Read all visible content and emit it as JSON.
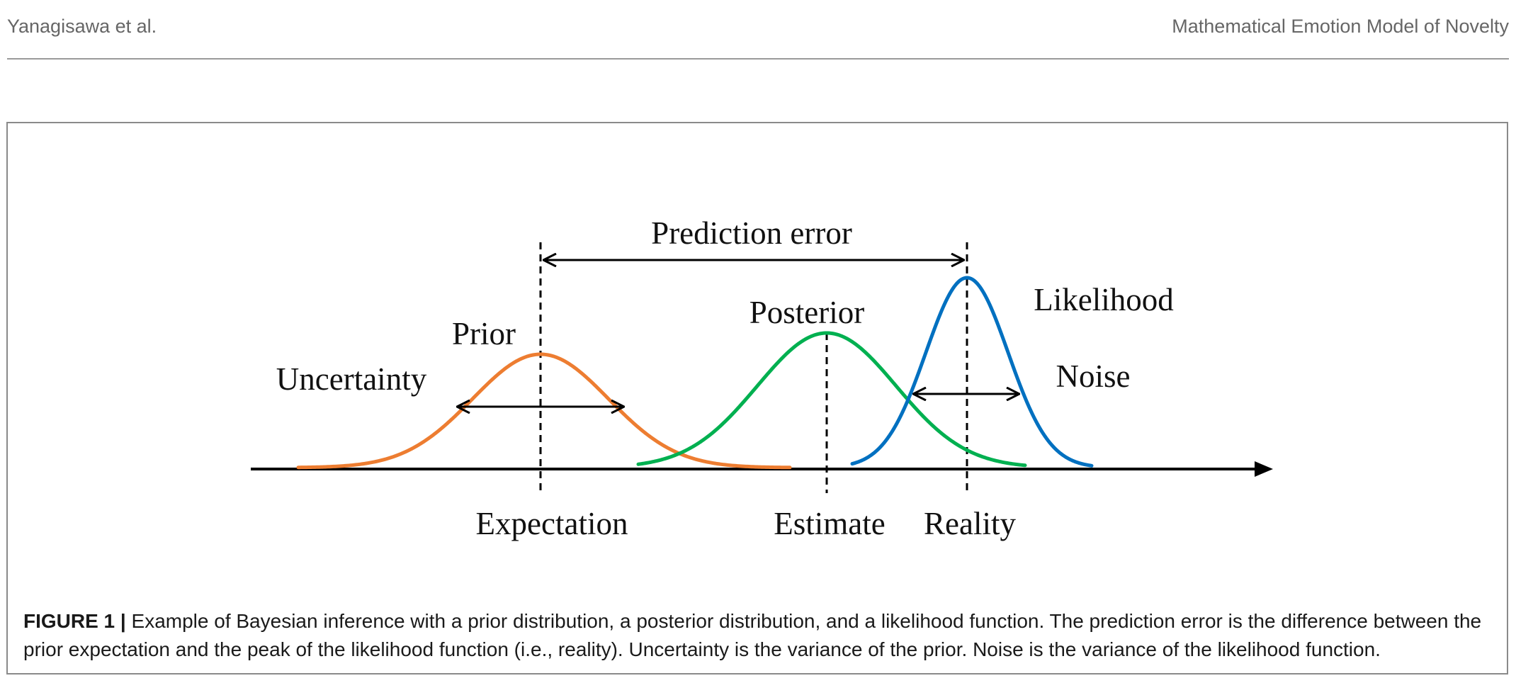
{
  "header": {
    "authors": "Yanagisawa et al.",
    "running_title": "Mathematical Emotion Model of Novelty"
  },
  "figure": {
    "labels": {
      "prediction_error": "Prediction error",
      "prior": "Prior",
      "posterior": "Posterior",
      "likelihood": "Likelihood",
      "uncertainty": "Uncertainty",
      "noise": "Noise",
      "expectation": "Expectation",
      "estimate": "Estimate",
      "reality": "Reality"
    },
    "colors": {
      "prior": "#ED7D31",
      "posterior": "#00B050",
      "likelihood": "#0070C0",
      "axis": "#000000"
    },
    "caption_label": "FIGURE 1 |",
    "caption_text": " Example of Bayesian inference with a prior distribution, a posterior distribution, and a likelihood function. The prediction error is the difference between the prior expectation and the peak of the likelihood function (i.e., reality). Uncertainty is the variance of the prior. Noise is the variance of the likelihood function."
  }
}
